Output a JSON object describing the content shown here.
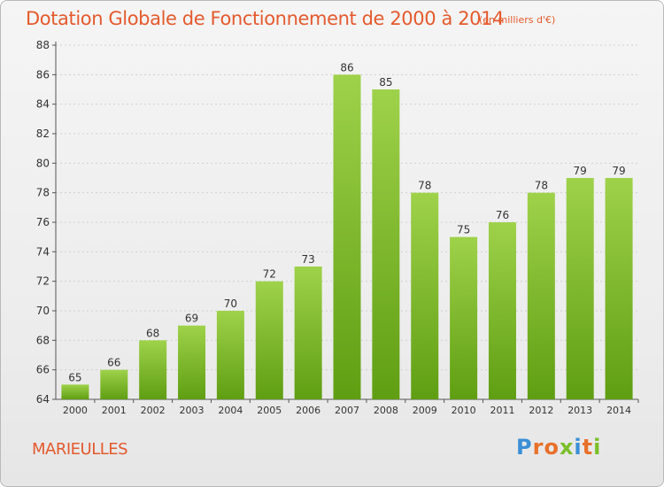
{
  "title": "Dotation Globale de Fonctionnement de 2000 à 2014",
  "subtitle": "(en milliers d'€)",
  "commune": "MARIEULLES",
  "logo": {
    "text": "Proxiti",
    "letters": [
      {
        "ch": "P",
        "color": "#3a8fd6"
      },
      {
        "ch": "r",
        "color": "#e8702a"
      },
      {
        "ch": "o",
        "color": "#e8702a"
      },
      {
        "ch": "x",
        "color": "#7bbf2a"
      },
      {
        "ch": "i",
        "color": "#3a8fd6"
      },
      {
        "ch": "t",
        "color": "#e8702a"
      },
      {
        "ch": "i",
        "color": "#7bbf2a"
      }
    ]
  },
  "colors": {
    "accent": "#e45a2d",
    "bar_light": "#9ed24a",
    "bar_dark": "#5f9e12",
    "axis": "#555555"
  },
  "chart_data": {
    "type": "bar",
    "categories": [
      "2000",
      "2001",
      "2002",
      "2003",
      "2004",
      "2005",
      "2006",
      "2007",
      "2008",
      "2009",
      "2010",
      "2011",
      "2012",
      "2013",
      "2014"
    ],
    "values": [
      65,
      66,
      68,
      69,
      70,
      72,
      73,
      86,
      85,
      78,
      75,
      76,
      78,
      79,
      79
    ],
    "title": "Dotation Globale de Fonctionnement de 2000 à 2014",
    "ylim": [
      64,
      88
    ],
    "yticks": [
      64,
      66,
      68,
      70,
      72,
      74,
      76,
      78,
      80,
      82,
      84,
      86,
      88
    ],
    "grid": true
  }
}
